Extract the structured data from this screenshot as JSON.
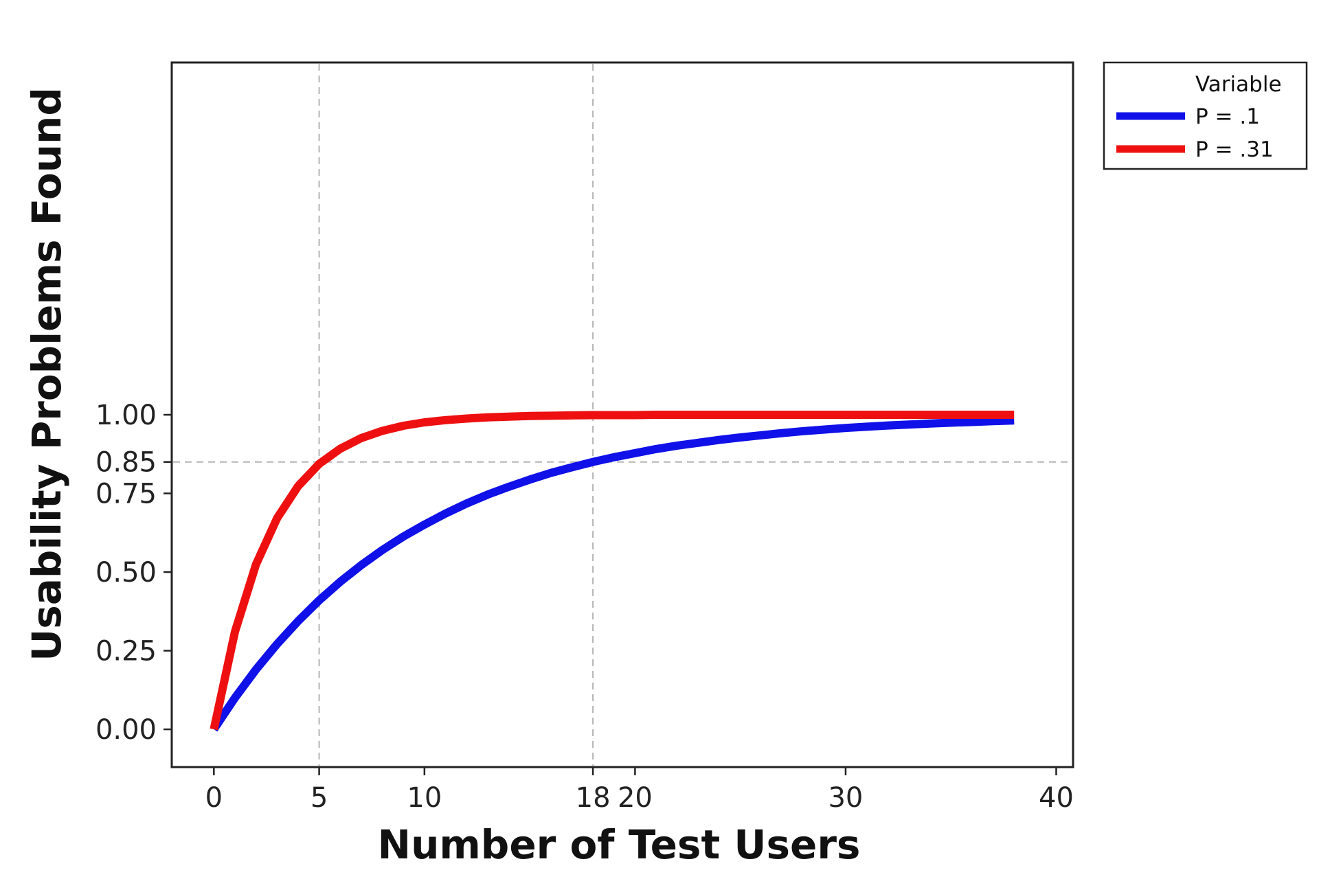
{
  "chart_data": {
    "type": "line",
    "xlabel": "Number of Test Users",
    "ylabel": "Usability Problems Found",
    "xlim": [
      -2,
      40.8
    ],
    "ylim": [
      -0.12,
      2.12
    ],
    "x_ticks": [
      {
        "value": 0,
        "label": "0"
      },
      {
        "value": 5,
        "label": "5"
      },
      {
        "value": 10,
        "label": "10"
      },
      {
        "value": 18,
        "label": "18"
      },
      {
        "value": 20,
        "label": "20"
      },
      {
        "value": 30,
        "label": "30"
      },
      {
        "value": 40,
        "label": "40"
      }
    ],
    "y_ticks": [
      {
        "value": 0.0,
        "label": "0.00"
      },
      {
        "value": 0.25,
        "label": "0.25"
      },
      {
        "value": 0.5,
        "label": "0.50"
      },
      {
        "value": 0.75,
        "label": "0.75"
      },
      {
        "value": 0.85,
        "label": "0.85"
      },
      {
        "value": 1.0,
        "label": "1.00"
      }
    ],
    "reference_lines": {
      "x": [
        5,
        18
      ],
      "y": [
        0.85
      ]
    },
    "grid": false,
    "legend": {
      "title": "Variable",
      "position": "right-top outside"
    },
    "colors": {
      "P = .1": "#1010e8",
      "P = .31": "#ee1010",
      "reference": "#b4b4b4"
    },
    "series": [
      {
        "name": "P = .1",
        "x": [
          0,
          1,
          2,
          3,
          4,
          5,
          6,
          7,
          8,
          9,
          10,
          11,
          12,
          13,
          14,
          15,
          16,
          17,
          18,
          19,
          20,
          21,
          22,
          23,
          24,
          25,
          26,
          27,
          28,
          29,
          30,
          31,
          32,
          33,
          34,
          35,
          36,
          37,
          38
        ],
        "y": [
          0.0,
          0.1,
          0.19,
          0.271,
          0.344,
          0.41,
          0.469,
          0.522,
          0.57,
          0.613,
          0.651,
          0.686,
          0.718,
          0.746,
          0.771,
          0.794,
          0.815,
          0.833,
          0.85,
          0.865,
          0.878,
          0.891,
          0.902,
          0.911,
          0.92,
          0.928,
          0.935,
          0.942,
          0.948,
          0.953,
          0.958,
          0.962,
          0.966,
          0.969,
          0.972,
          0.975,
          0.977,
          0.98,
          0.982
        ]
      },
      {
        "name": "P = .31",
        "x": [
          0,
          1,
          2,
          3,
          4,
          5,
          6,
          7,
          8,
          9,
          10,
          11,
          12,
          13,
          14,
          15,
          16,
          17,
          18,
          19,
          20,
          21,
          22,
          23,
          24,
          25,
          26,
          27,
          28,
          29,
          30,
          31,
          32,
          33,
          34,
          35,
          36,
          37,
          38
        ],
        "y": [
          0.0,
          0.31,
          0.524,
          0.671,
          0.773,
          0.844,
          0.892,
          0.926,
          0.949,
          0.965,
          0.976,
          0.983,
          0.988,
          0.992,
          0.994,
          0.996,
          0.997,
          0.998,
          0.999,
          0.999,
          0.999,
          1.0,
          1.0,
          1.0,
          1.0,
          1.0,
          1.0,
          1.0,
          1.0,
          1.0,
          1.0,
          1.0,
          1.0,
          1.0,
          1.0,
          1.0,
          1.0,
          1.0,
          1.0
        ]
      }
    ]
  }
}
